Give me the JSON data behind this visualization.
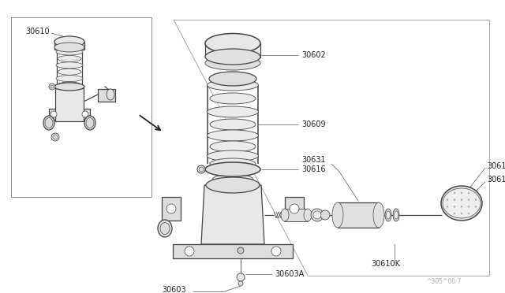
{
  "bg_color": "#ffffff",
  "line_color": "#444444",
  "text_color": "#222222",
  "fig_width": 6.4,
  "fig_height": 3.72,
  "dpi": 100,
  "watermark": "^305^00·7"
}
